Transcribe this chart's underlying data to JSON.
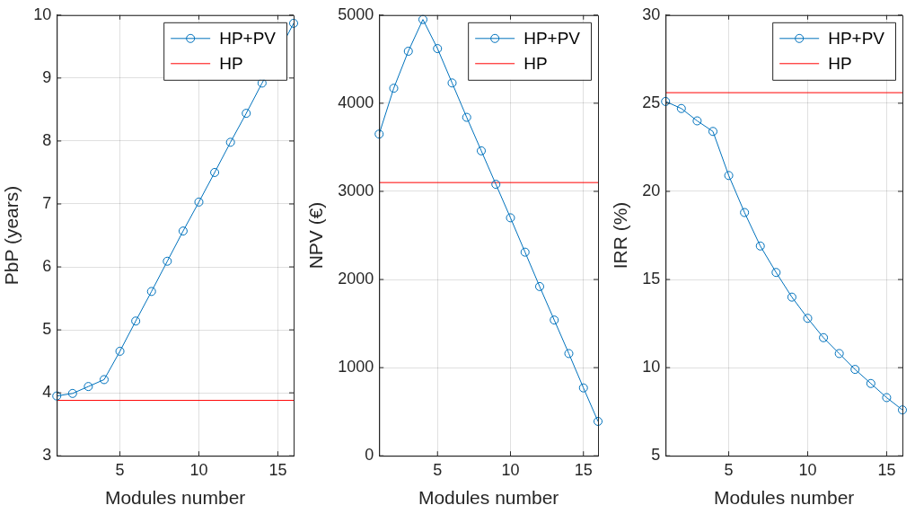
{
  "chart_data": [
    {
      "type": "line",
      "xlabel": "Modules number",
      "ylabel": "PbP (years)",
      "x": [
        1,
        2,
        3,
        4,
        5,
        6,
        7,
        8,
        9,
        10,
        11,
        12,
        13,
        14,
        15,
        16
      ],
      "xlim": [
        1,
        16
      ],
      "xticks": [
        5,
        10,
        15
      ],
      "ylim": [
        3,
        10
      ],
      "yticks": [
        3,
        4,
        5,
        6,
        7,
        8,
        9,
        10
      ],
      "grid": true,
      "legend": "top right",
      "marker": "circle",
      "series": [
        {
          "name": "HP+PV",
          "color": "#0072bd",
          "values": [
            3.95,
            3.99,
            4.1,
            4.21,
            4.66,
            5.14,
            5.61,
            6.09,
            6.57,
            7.03,
            7.5,
            7.98,
            8.44,
            8.92,
            null,
            9.87
          ]
        }
      ],
      "ref_lines": [
        {
          "axis": "y",
          "value": 3.88,
          "label": "HP",
          "color": "#ff0000"
        }
      ]
    },
    {
      "type": "line",
      "xlabel": "Modules number",
      "ylabel": "NPV (€)",
      "x": [
        1,
        2,
        3,
        4,
        5,
        6,
        7,
        8,
        9,
        10,
        11,
        12,
        13,
        14,
        15,
        16
      ],
      "xlim": [
        1,
        16
      ],
      "xticks": [
        5,
        10,
        15
      ],
      "ylim": [
        0,
        5000
      ],
      "yticks": [
        0,
        1000,
        2000,
        3000,
        4000,
        5000
      ],
      "grid": true,
      "legend": "top right",
      "marker": "circle",
      "series": [
        {
          "name": "HP+PV",
          "color": "#0072bd",
          "values": [
            3650,
            4170,
            4590,
            4950,
            4620,
            4230,
            3840,
            3460,
            3080,
            2700,
            2310,
            1920,
            1540,
            1160,
            770,
            390
          ]
        }
      ],
      "ref_lines": [
        {
          "axis": "y",
          "value": 3100,
          "label": "HP",
          "color": "#ff0000"
        }
      ]
    },
    {
      "type": "line",
      "xlabel": "Modules number",
      "ylabel": "IRR (%)",
      "x": [
        1,
        2,
        3,
        4,
        5,
        6,
        7,
        8,
        9,
        10,
        11,
        12,
        13,
        14,
        15,
        16
      ],
      "xlim": [
        1,
        16
      ],
      "xticks": [
        5,
        10,
        15
      ],
      "ylim": [
        5,
        30
      ],
      "yticks": [
        5,
        10,
        15,
        20,
        25,
        30
      ],
      "grid": true,
      "legend": "top right",
      "marker": "circle",
      "series": [
        {
          "name": "HP+PV",
          "color": "#0072bd",
          "values": [
            25.1,
            24.7,
            24.0,
            23.4,
            20.9,
            18.8,
            16.9,
            15.4,
            14.0,
            12.8,
            11.7,
            10.8,
            9.9,
            9.1,
            8.3,
            7.6
          ]
        }
      ],
      "ref_lines": [
        {
          "axis": "y",
          "value": 25.6,
          "label": "HP",
          "color": "#ff0000"
        }
      ]
    }
  ]
}
